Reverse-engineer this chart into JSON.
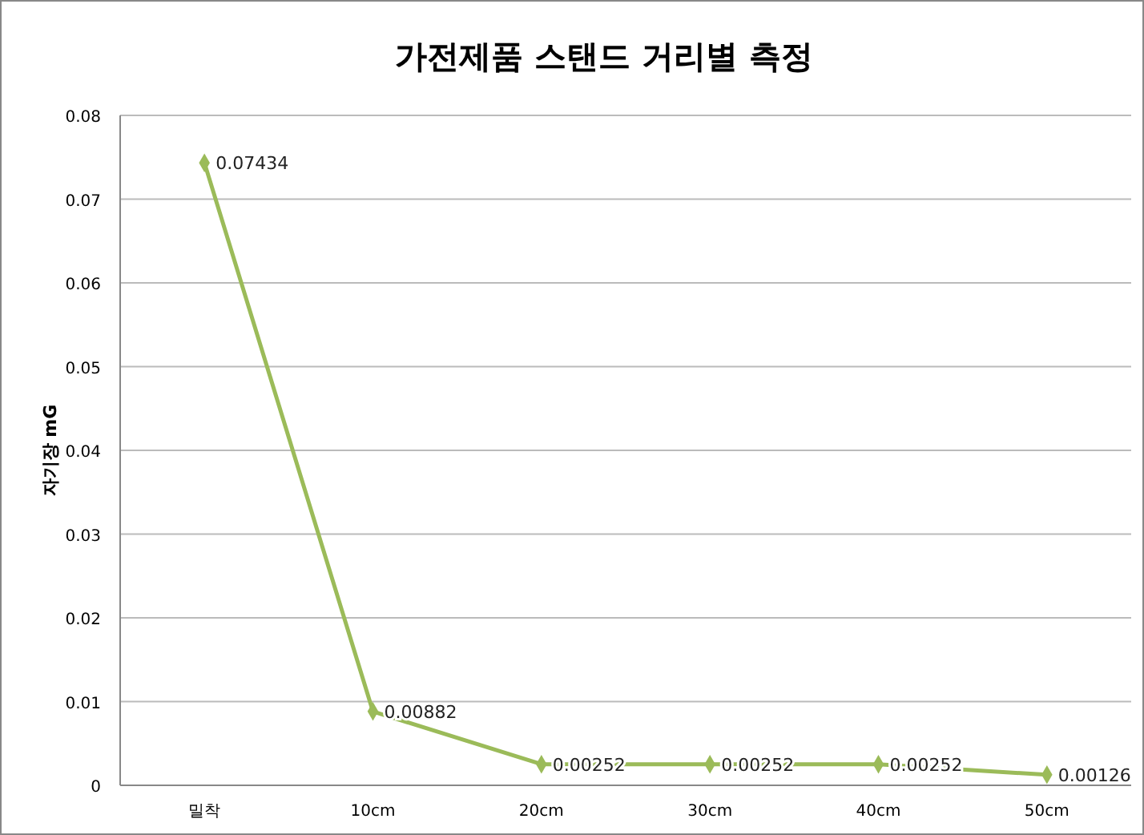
{
  "chart_data": {
    "type": "line",
    "title": "가전제품 스탠드 거리별 측정",
    "ylabel": "자기장 mG",
    "categories": [
      "밀착",
      "10cm",
      "20cm",
      "30cm",
      "40cm",
      "50cm"
    ],
    "series": [
      {
        "color": "#9bbb59",
        "values": [
          0.07434,
          0.00882,
          0.00252,
          0.00252,
          0.00252,
          0.00126
        ]
      }
    ],
    "ylim": [
      0,
      0.08
    ],
    "yticks": [
      0,
      0.01,
      0.02,
      0.03,
      0.04,
      0.05,
      0.06,
      0.07,
      0.08
    ],
    "grid": "y",
    "marker": "diamond",
    "line_style": "solid",
    "data_labels": true
  }
}
